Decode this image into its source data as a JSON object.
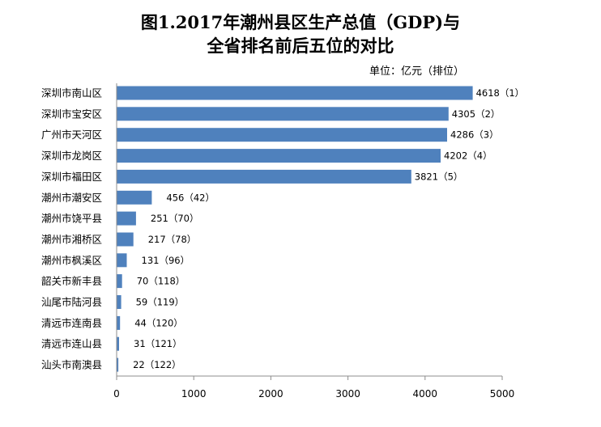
{
  "chart_data": {
    "type": "bar",
    "orientation": "horizontal",
    "title": "图1.2017年潮州县区生产总值（GDP)与全省排名前后五位的对比",
    "title_lines": [
      "图1.2017年潮州县区生产总值（GDP)与",
      "全省排名前后五位的对比"
    ],
    "unit_note": "单位：亿元（排位）",
    "categories": [
      "深圳市南山区",
      "深圳市宝安区",
      "广州市天河区",
      "深圳市龙岗区",
      "深圳市福田区",
      "潮州市潮安区",
      "潮州市饶平县",
      "潮州市湘桥区",
      "潮州市枫溪区",
      "韶关市新丰县",
      "汕尾市陆河县",
      "清远市连南县",
      "清远市连山县",
      "汕头市南澳县"
    ],
    "values": [
      4618,
      4305,
      4286,
      4202,
      3821,
      456,
      251,
      217,
      131,
      70,
      59,
      44,
      31,
      22
    ],
    "data_labels": [
      "4618（1）",
      "4305（2）",
      "4286（3）",
      "4202（4）",
      "3821（5）",
      "456（42）",
      "251（70）",
      "217（78）",
      "131（96）",
      "70（118）",
      "59（119）",
      "44（120）",
      "31（121）",
      "22（122）"
    ],
    "xlim": [
      0,
      5000
    ],
    "xticks": [
      "0",
      "1000",
      "2000",
      "3000",
      "4000",
      "5000"
    ],
    "xlabel": "",
    "ylabel": "",
    "grid": false,
    "legend": "none",
    "bar_color": "#4f81bd"
  }
}
